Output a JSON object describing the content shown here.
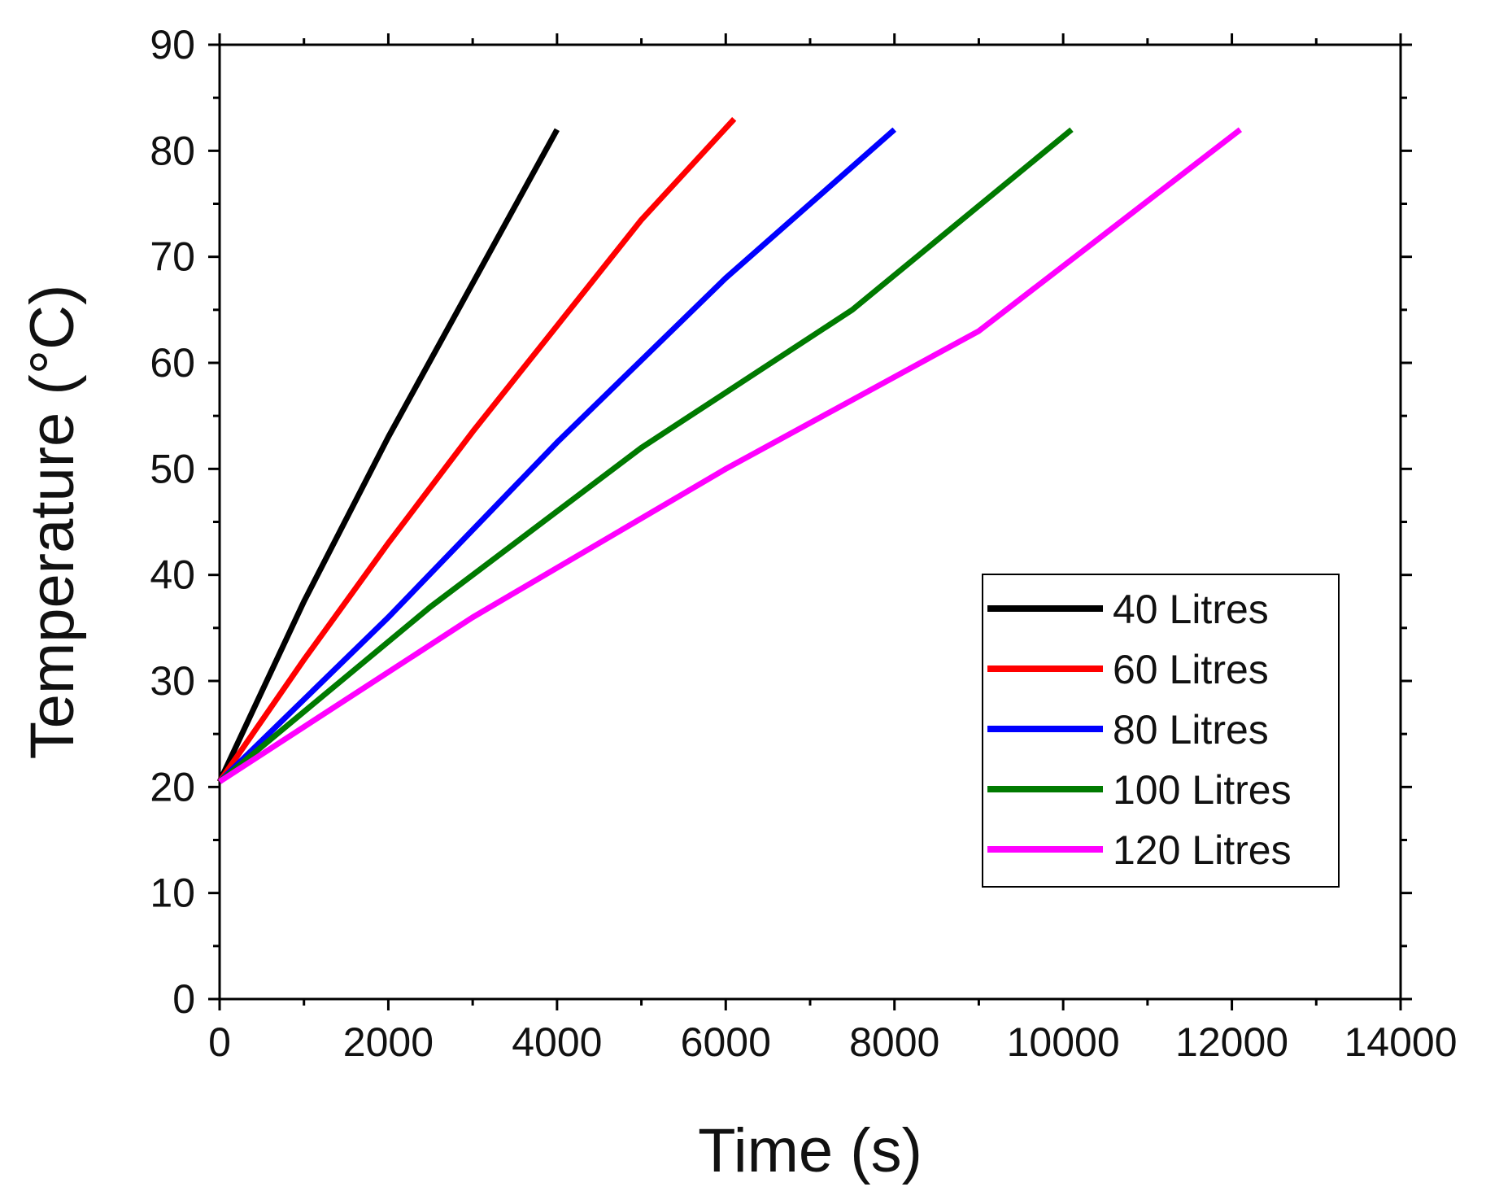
{
  "chart_data": {
    "type": "line",
    "title": "",
    "xlabel": "Time (s)",
    "ylabel": "Temperature (°C)",
    "xlim": [
      0,
      14000
    ],
    "ylim": [
      0,
      90
    ],
    "xticks": [
      0,
      2000,
      4000,
      6000,
      8000,
      10000,
      12000,
      14000
    ],
    "xtick_labels": [
      "0",
      "2000",
      "4000",
      "6000",
      "8000",
      "10000",
      "12000",
      "14000"
    ],
    "yticks": [
      0,
      10,
      20,
      30,
      40,
      50,
      60,
      70,
      80,
      90
    ],
    "ytick_labels": [
      "0",
      "10",
      "20",
      "30",
      "40",
      "50",
      "60",
      "70",
      "80",
      "90"
    ],
    "grid": false,
    "legend_position": "center-right",
    "series": [
      {
        "name": "40 Litres",
        "color": "#000000",
        "points": [
          [
            0,
            20.5
          ],
          [
            1000,
            37.5
          ],
          [
            2000,
            53
          ],
          [
            3000,
            67.5
          ],
          [
            4000,
            82
          ]
        ]
      },
      {
        "name": "60 Litres",
        "color": "#ff0000",
        "points": [
          [
            0,
            20.5
          ],
          [
            1000,
            32
          ],
          [
            2000,
            43
          ],
          [
            3000,
            53.5
          ],
          [
            4000,
            63.5
          ],
          [
            5000,
            73.5
          ],
          [
            6100,
            83
          ]
        ]
      },
      {
        "name": "80 Litres",
        "color": "#0000ff",
        "points": [
          [
            0,
            20.5
          ],
          [
            2000,
            36
          ],
          [
            4000,
            52.5
          ],
          [
            6000,
            68
          ],
          [
            8000,
            82
          ]
        ]
      },
      {
        "name": "100 Litres",
        "color": "#007a00",
        "points": [
          [
            0,
            20.5
          ],
          [
            2500,
            37
          ],
          [
            5000,
            52
          ],
          [
            7500,
            65
          ],
          [
            10100,
            82
          ]
        ]
      },
      {
        "name": "120 Litres",
        "color": "#ff00ff",
        "points": [
          [
            0,
            20.5
          ],
          [
            3000,
            36
          ],
          [
            6000,
            50
          ],
          [
            9000,
            63
          ],
          [
            12100,
            82
          ]
        ]
      }
    ]
  }
}
